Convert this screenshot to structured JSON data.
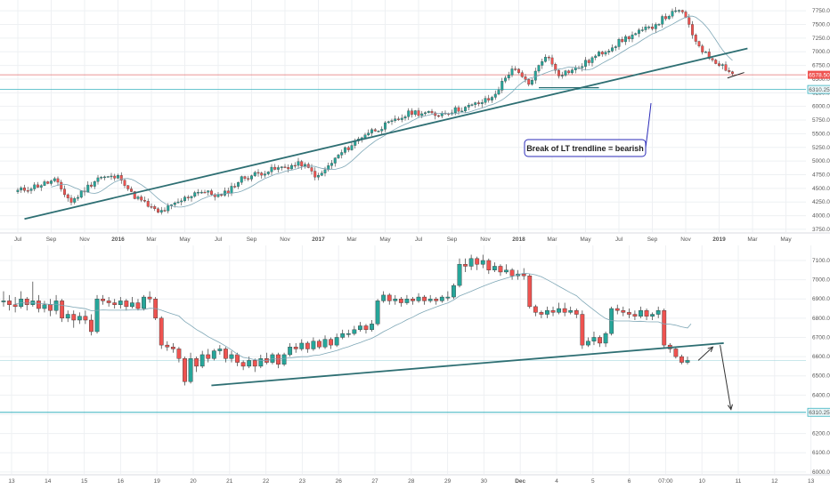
{
  "colors": {
    "up": "#26a69a",
    "down": "#ef5350",
    "ma": "#7ea7b6",
    "trend": "#2e6f73",
    "support": "#3ab3c0",
    "price": "#e57373",
    "grid": "#eef0f3",
    "annot": "#2b2bb8"
  },
  "annotation": {
    "text": "Break of LT trendline = bearish"
  },
  "chart_data": [
    {
      "type": "candlestick",
      "title": "",
      "interval": "weekly",
      "ylim": [
        3700,
        7850
      ],
      "x_ticks": [
        "Jul",
        "Sep",
        "Nov",
        "2016",
        "Mar",
        "May",
        "Jul",
        "Sep",
        "Nov",
        "2017",
        "Mar",
        "May",
        "Jul",
        "Sep",
        "Nov",
        "2018",
        "Mar",
        "May",
        "Jul",
        "Sep",
        "Nov",
        "2019",
        "Mar",
        "May"
      ],
      "y_ticks": [
        "7750.00",
        "7500.00",
        "7250.00",
        "7000.00",
        "6750.00",
        "6500.00",
        "6250.00",
        "6000.00",
        "5750.00",
        "5500.00",
        "5250.00",
        "5000.00",
        "4750.00",
        "4500.00",
        "4250.00",
        "4000.00",
        "3750.00"
      ],
      "price_tag": "6578.50",
      "support_tag": "6310.25",
      "support_level": 6310.25,
      "last_price": 6578.5,
      "trendline": [
        {
          "t": 0.2,
          "v": 3940
        },
        {
          "t": 21.85,
          "v": 7060
        }
      ],
      "anchors": [
        [
          0,
          4450
        ],
        [
          1.1,
          4640
        ],
        [
          1.6,
          4250
        ],
        [
          2.4,
          4700
        ],
        [
          3.1,
          4700
        ],
        [
          3.4,
          4400
        ],
        [
          4.2,
          4050
        ],
        [
          4.7,
          4200
        ],
        [
          5.4,
          4460
        ],
        [
          6.1,
          4350
        ],
        [
          6.7,
          4680
        ],
        [
          7.4,
          4810
        ],
        [
          8.5,
          4950
        ],
        [
          9.0,
          4700
        ],
        [
          9.6,
          5100
        ],
        [
          10.4,
          5500
        ],
        [
          11.2,
          5700
        ],
        [
          11.8,
          5900
        ],
        [
          12.5,
          5850
        ],
        [
          13.5,
          5990
        ],
        [
          14.2,
          6150
        ],
        [
          14.8,
          6700
        ],
        [
          15.3,
          6400
        ],
        [
          15.8,
          6950
        ],
        [
          16.2,
          6600
        ],
        [
          16.7,
          6680
        ],
        [
          17.5,
          6990
        ],
        [
          18.2,
          7250
        ],
        [
          18.9,
          7430
        ],
        [
          19.5,
          7680
        ],
        [
          19.9,
          7750
        ],
        [
          20.2,
          7300
        ],
        [
          20.6,
          6950
        ],
        [
          21.1,
          6750
        ],
        [
          21.4,
          6600
        ]
      ],
      "ma_period": 10,
      "seed": 11
    },
    {
      "type": "candlestick",
      "title": "",
      "interval": "4h",
      "ylim": [
        5990,
        7160
      ],
      "x_ticks": [
        "13",
        "14",
        "15",
        "16",
        "19",
        "20",
        "21",
        "22",
        "23",
        "26",
        "27",
        "28",
        "29",
        "30",
        "Dec",
        "4",
        "5",
        "6",
        "07:00",
        "10",
        "11",
        "12",
        "13"
      ],
      "y_ticks": [
        "7100.00",
        "7000.00",
        "6900.00",
        "6800.00",
        "6700.00",
        "6600.00",
        "6500.00",
        "6400.00",
        "6300.00",
        "6200.00",
        "6100.00",
        "6000.00"
      ],
      "support_tag": "6310.25",
      "support_level": 6310.25,
      "thin_level": 6580,
      "trendline": [
        {
          "t": 5.5,
          "v": 6450
        },
        {
          "t": 19.6,
          "v": 6670
        }
      ],
      "ma_end_value": 6770,
      "arrows": [
        {
          "from": [
            18.9,
            6580
          ],
          "to": [
            19.3,
            6650
          ]
        },
        {
          "from": [
            19.5,
            6660
          ],
          "to": [
            19.8,
            6325
          ]
        }
      ],
      "candles": [
        [
          6890,
          6890,
          6940,
          6860
        ],
        [
          6890,
          6870,
          6920,
          6840
        ],
        [
          6870,
          6860,
          6910,
          6830
        ],
        [
          6860,
          6900,
          6940,
          6850
        ],
        [
          6900,
          6870,
          6910,
          6840
        ],
        [
          6870,
          6890,
          6990,
          6860
        ],
        [
          6890,
          6850,
          6920,
          6830
        ],
        [
          6850,
          6870,
          6890,
          6830
        ],
        [
          6870,
          6840,
          6900,
          6810
        ],
        [
          6840,
          6890,
          6920,
          6820
        ],
        [
          6890,
          6800,
          6900,
          6780
        ],
        [
          6800,
          6820,
          6840,
          6780
        ],
        [
          6820,
          6790,
          6840,
          6750
        ],
        [
          6790,
          6810,
          6830,
          6770
        ],
        [
          6810,
          6790,
          6840,
          6770
        ],
        [
          6790,
          6730,
          6820,
          6710
        ],
        [
          6730,
          6900,
          6920,
          6720
        ],
        [
          6900,
          6890,
          6920,
          6870
        ],
        [
          6890,
          6880,
          6910,
          6860
        ],
        [
          6880,
          6870,
          6900,
          6850
        ],
        [
          6870,
          6890,
          6910,
          6850
        ],
        [
          6890,
          6860,
          6900,
          6840
        ],
        [
          6860,
          6880,
          6910,
          6850
        ],
        [
          6880,
          6850,
          6900,
          6840
        ],
        [
          6850,
          6910,
          6920,
          6840
        ],
        [
          6910,
          6900,
          6940,
          6880
        ],
        [
          6900,
          6800,
          6910,
          6790
        ],
        [
          6800,
          6660,
          6810,
          6640
        ],
        [
          6660,
          6650,
          6680,
          6630
        ],
        [
          6650,
          6640,
          6670,
          6620
        ],
        [
          6640,
          6590,
          6650,
          6570
        ],
        [
          6590,
          6470,
          6600,
          6450
        ],
        [
          6470,
          6590,
          6620,
          6460
        ],
        [
          6590,
          6550,
          6600,
          6520
        ],
        [
          6550,
          6610,
          6630,
          6540
        ],
        [
          6610,
          6590,
          6640,
          6570
        ],
        [
          6590,
          6630,
          6640,
          6580
        ],
        [
          6630,
          6640,
          6660,
          6610
        ],
        [
          6640,
          6590,
          6650,
          6570
        ],
        [
          6590,
          6610,
          6630,
          6570
        ],
        [
          6610,
          6570,
          6620,
          6550
        ],
        [
          6570,
          6550,
          6580,
          6530
        ],
        [
          6550,
          6580,
          6600,
          6540
        ],
        [
          6580,
          6550,
          6590,
          6520
        ],
        [
          6550,
          6590,
          6610,
          6540
        ],
        [
          6590,
          6570,
          6620,
          6560
        ],
        [
          6570,
          6610,
          6620,
          6560
        ],
        [
          6610,
          6560,
          6620,
          6540
        ],
        [
          6560,
          6610,
          6620,
          6550
        ],
        [
          6610,
          6650,
          6670,
          6600
        ],
        [
          6650,
          6640,
          6670,
          6620
        ],
        [
          6640,
          6670,
          6690,
          6630
        ],
        [
          6670,
          6640,
          6680,
          6620
        ],
        [
          6640,
          6680,
          6700,
          6630
        ],
        [
          6680,
          6650,
          6690,
          6640
        ],
        [
          6650,
          6690,
          6710,
          6640
        ],
        [
          6690,
          6660,
          6700,
          6640
        ],
        [
          6660,
          6700,
          6720,
          6650
        ],
        [
          6700,
          6720,
          6740,
          6690
        ],
        [
          6720,
          6720,
          6740,
          6700
        ],
        [
          6720,
          6740,
          6760,
          6710
        ],
        [
          6740,
          6760,
          6780,
          6730
        ],
        [
          6760,
          6740,
          6770,
          6720
        ],
        [
          6740,
          6770,
          6790,
          6730
        ],
        [
          6770,
          6890,
          6900,
          6760
        ],
        [
          6890,
          6920,
          6940,
          6880
        ],
        [
          6920,
          6890,
          6930,
          6870
        ],
        [
          6890,
          6900,
          6920,
          6870
        ],
        [
          6900,
          6880,
          6910,
          6860
        ],
        [
          6880,
          6900,
          6920,
          6870
        ],
        [
          6900,
          6890,
          6910,
          6870
        ],
        [
          6890,
          6910,
          6930,
          6880
        ],
        [
          6910,
          6890,
          6920,
          6870
        ],
        [
          6890,
          6900,
          6920,
          6880
        ],
        [
          6900,
          6890,
          6910,
          6870
        ],
        [
          6890,
          6910,
          6920,
          6880
        ],
        [
          6910,
          6910,
          6940,
          6890
        ],
        [
          6910,
          6970,
          6980,
          6900
        ],
        [
          6970,
          7080,
          7110,
          6960
        ],
        [
          7080,
          7070,
          7110,
          7040
        ],
        [
          7070,
          7110,
          7130,
          7050
        ],
        [
          7110,
          7080,
          7120,
          7050
        ],
        [
          7080,
          7100,
          7130,
          7060
        ],
        [
          7100,
          7050,
          7110,
          7030
        ],
        [
          7050,
          7070,
          7090,
          7040
        ],
        [
          7070,
          7040,
          7080,
          7020
        ],
        [
          7040,
          7050,
          7080,
          7030
        ],
        [
          7050,
          7020,
          7060,
          7000
        ],
        [
          7020,
          7030,
          7050,
          7000
        ],
        [
          7030,
          7020,
          7060,
          7000
        ],
        [
          7020,
          6860,
          7030,
          6850
        ],
        [
          6860,
          6830,
          6870,
          6810
        ],
        [
          6830,
          6820,
          6840,
          6800
        ],
        [
          6820,
          6840,
          6860,
          6800
        ],
        [
          6840,
          6830,
          6860,
          6810
        ],
        [
          6830,
          6850,
          6880,
          6820
        ],
        [
          6850,
          6830,
          6880,
          6810
        ],
        [
          6830,
          6840,
          6860,
          6820
        ],
        [
          6840,
          6820,
          6850,
          6800
        ],
        [
          6820,
          6660,
          6840,
          6640
        ],
        [
          6660,
          6680,
          6700,
          6650
        ],
        [
          6680,
          6700,
          6730,
          6660
        ],
        [
          6700,
          6670,
          6710,
          6650
        ],
        [
          6670,
          6720,
          6730,
          6650
        ],
        [
          6720,
          6850,
          6860,
          6710
        ],
        [
          6850,
          6840,
          6870,
          6820
        ],
        [
          6840,
          6830,
          6860,
          6810
        ],
        [
          6830,
          6820,
          6850,
          6800
        ],
        [
          6820,
          6810,
          6840,
          6790
        ],
        [
          6810,
          6840,
          6860,
          6800
        ],
        [
          6840,
          6810,
          6850,
          6790
        ],
        [
          6810,
          6820,
          6830,
          6790
        ],
        [
          6820,
          6840,
          6860,
          6800
        ],
        [
          6840,
          6660,
          6850,
          6640
        ],
        [
          6660,
          6640,
          6670,
          6620
        ],
        [
          6640,
          6600,
          6650,
          6590
        ],
        [
          6600,
          6570,
          6610,
          6560
        ],
        [
          6570,
          6580,
          6600,
          6560
        ]
      ]
    }
  ]
}
